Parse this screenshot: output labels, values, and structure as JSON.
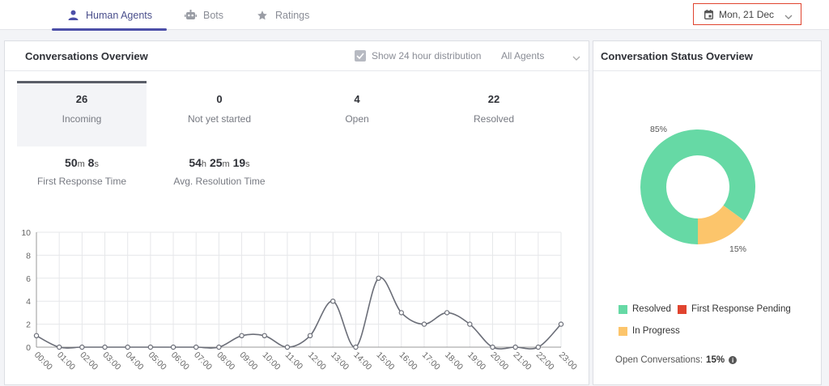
{
  "tabs": [
    {
      "label": "Human Agents",
      "icon": "person-icon",
      "active": true
    },
    {
      "label": "Bots",
      "icon": "bot-icon",
      "active": false
    },
    {
      "label": "Ratings",
      "icon": "star-icon",
      "active": false
    }
  ],
  "date_picker": {
    "value": "Mon, 21 Dec"
  },
  "conversations": {
    "title": "Conversations Overview",
    "show24_label": "Show 24 hour distribution",
    "agent_filter": "All Agents",
    "stats": [
      {
        "value": "26",
        "label": "Incoming"
      },
      {
        "value": "0",
        "label": "Not yet started"
      },
      {
        "value": "4",
        "label": "Open"
      },
      {
        "value": "22",
        "label": "Resolved"
      }
    ],
    "times": [
      {
        "parts": [
          [
            "50",
            "m"
          ],
          [
            "8",
            "s"
          ]
        ],
        "label": "First Response Time"
      },
      {
        "parts": [
          [
            "54",
            "h"
          ],
          [
            "25",
            "m"
          ],
          [
            "19",
            "s"
          ]
        ],
        "label": "Avg. Resolution Time"
      }
    ]
  },
  "status": {
    "title": "Conversation Status Overview",
    "pct_resolved_label": "85%",
    "pct_progress_label": "15%",
    "legend": [
      {
        "label": "Resolved",
        "color": "#66d9a5"
      },
      {
        "label": "First Response Pending",
        "color": "#e0442f"
      },
      {
        "label": "In Progress",
        "color": "#fcc56b"
      }
    ],
    "open_label": "Open Conversations:",
    "open_value": "15%"
  },
  "chart_data": [
    {
      "type": "line",
      "categories": [
        "00:00",
        "01:00",
        "02:00",
        "03:00",
        "04:00",
        "05:00",
        "06:00",
        "07:00",
        "08:00",
        "09:00",
        "10:00",
        "11:00",
        "12:00",
        "13:00",
        "14:00",
        "15:00",
        "16:00",
        "17:00",
        "18:00",
        "19:00",
        "20:00",
        "21:00",
        "22:00",
        "23:00"
      ],
      "values": [
        1,
        0,
        0,
        0,
        0,
        0,
        0,
        0,
        0,
        1,
        1,
        0,
        1,
        4,
        0,
        6,
        3,
        2,
        3,
        2,
        0,
        0,
        0,
        2
      ],
      "y_ticks": [
        0,
        2,
        4,
        6,
        8,
        10
      ],
      "ylim": [
        0,
        10
      ],
      "grid": true,
      "color": "#6b6e78"
    },
    {
      "type": "pie",
      "categories": [
        "Resolved",
        "In Progress"
      ],
      "values": [
        85,
        15
      ],
      "colors": [
        "#66d9a5",
        "#fcc56b"
      ]
    }
  ]
}
